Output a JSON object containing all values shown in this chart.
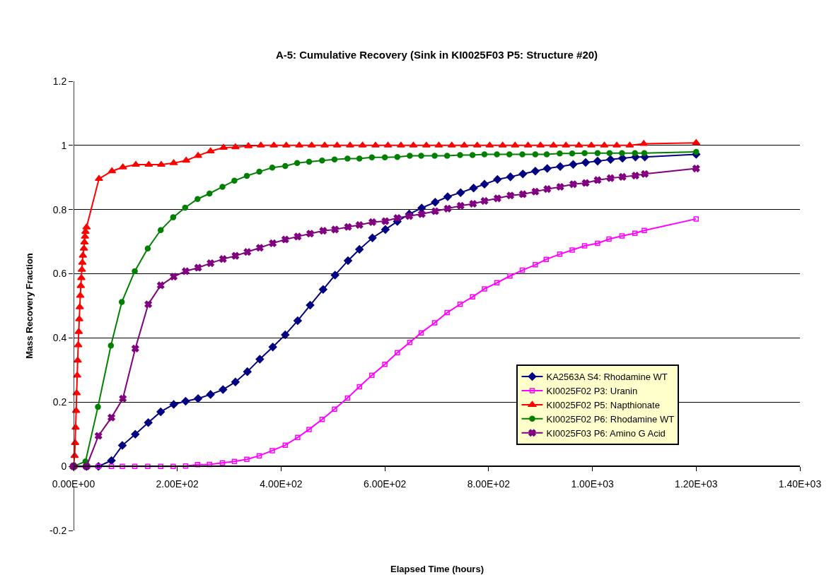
{
  "chart_data": {
    "type": "line",
    "title": "A-5: Cumulative Recovery (Sink in KI0025F03 P5: Structure #20)",
    "xlabel": "Elapsed Time (hours)",
    "ylabel": "Mass Recovery Fraction",
    "xlim": [
      0,
      1400
    ],
    "xticks": [
      {
        "value": 0,
        "label": "0.00E+00"
      },
      {
        "value": 200,
        "label": "2.00E+02"
      },
      {
        "value": 400,
        "label": "4.00E+02"
      },
      {
        "value": 600,
        "label": "6.00E+02"
      },
      {
        "value": 800,
        "label": "8.00E+02"
      },
      {
        "value": 1000,
        "label": "1.00E+03"
      },
      {
        "value": 1200,
        "label": "1.20E+03"
      },
      {
        "value": 1400,
        "label": "1.40E+03"
      }
    ],
    "ylim": [
      -0.2,
      1.2
    ],
    "yticks": [
      -0.2,
      0,
      0.2,
      0.4,
      0.6,
      0.8,
      1,
      1.2
    ],
    "grid": "y",
    "legend": "bottom right",
    "series": [
      {
        "name": "KA2563A S4: Rhodamine WT",
        "color": "#000080",
        "marker": "diamond",
        "x": [
          0,
          25,
          48,
          73,
          94,
          119,
          144,
          168,
          193,
          216,
          240,
          264,
          288,
          312,
          335,
          359,
          384,
          408,
          432,
          456,
          481,
          504,
          529,
          551,
          576,
          601,
          624,
          647,
          671,
          697,
          721,
          746,
          771,
          792,
          817,
          842,
          866,
          890,
          913,
          938,
          963,
          987,
          1010,
          1035,
          1058,
          1083,
          1101,
          1200
        ],
        "values": [
          0,
          0,
          0,
          0.018,
          0.065,
          0.1,
          0.136,
          0.17,
          0.193,
          0.203,
          0.211,
          0.224,
          0.239,
          0.263,
          0.295,
          0.334,
          0.372,
          0.41,
          0.454,
          0.502,
          0.551,
          0.596,
          0.641,
          0.676,
          0.712,
          0.738,
          0.763,
          0.786,
          0.805,
          0.823,
          0.84,
          0.853,
          0.867,
          0.879,
          0.894,
          0.902,
          0.911,
          0.92,
          0.928,
          0.934,
          0.941,
          0.947,
          0.951,
          0.956,
          0.96,
          0.964,
          0.964,
          0.972
        ]
      },
      {
        "name": "KI0025F02 P3: Uranin",
        "color": "#ff00ff",
        "marker": "square",
        "x": [
          0,
          25,
          48,
          73,
          94,
          118,
          143,
          168,
          192,
          216,
          239,
          262,
          287,
          310,
          334,
          358,
          383,
          408,
          432,
          454,
          479,
          503,
          528,
          551,
          575,
          600,
          624,
          648,
          670,
          696,
          720,
          745,
          769,
          792,
          816,
          841,
          865,
          890,
          911,
          937,
          961,
          985,
          1010,
          1032,
          1057,
          1082,
          1100,
          1200
        ],
        "values": [
          0,
          0,
          0,
          0,
          0,
          0,
          0,
          0,
          0,
          0.001,
          0.005,
          0.006,
          0.011,
          0.015,
          0.022,
          0.033,
          0.049,
          0.066,
          0.09,
          0.115,
          0.146,
          0.178,
          0.213,
          0.248,
          0.284,
          0.318,
          0.354,
          0.386,
          0.416,
          0.447,
          0.479,
          0.505,
          0.528,
          0.553,
          0.572,
          0.593,
          0.611,
          0.628,
          0.645,
          0.661,
          0.674,
          0.687,
          0.695,
          0.708,
          0.718,
          0.726,
          0.735,
          0.771
        ]
      },
      {
        "name": "KI0025F02 P5: Napthionate",
        "color": "#ff0000",
        "marker": "triangle",
        "x": [
          0,
          2,
          3,
          4,
          5,
          6,
          7,
          8,
          9,
          10,
          11,
          12,
          13,
          14,
          15,
          16,
          17,
          18,
          20,
          21,
          22,
          23,
          25,
          49,
          74,
          95,
          120,
          145,
          169,
          193,
          217,
          240,
          264,
          289,
          312,
          337,
          361,
          386,
          410,
          435,
          459,
          484,
          508,
          533,
          557,
          582,
          606,
          631,
          655,
          680,
          704,
          729,
          753,
          778,
          802,
          827,
          851,
          876,
          900,
          925,
          949,
          974,
          998,
          1023,
          1047,
          1072,
          1099,
          1200
        ],
        "values": [
          0,
          0.033,
          0.073,
          0.121,
          0.173,
          0.228,
          0.283,
          0.33,
          0.378,
          0.419,
          0.459,
          0.496,
          0.532,
          0.562,
          0.587,
          0.613,
          0.635,
          0.657,
          0.679,
          0.698,
          0.716,
          0.731,
          0.745,
          0.896,
          0.92,
          0.932,
          0.94,
          0.94,
          0.94,
          0.945,
          0.953,
          0.968,
          0.982,
          0.993,
          0.995,
          0.998,
          1,
          1,
          1,
          1,
          1,
          1,
          1,
          1,
          1,
          1,
          1,
          1,
          1,
          1,
          1,
          1,
          1,
          1,
          1,
          1,
          1,
          1,
          1,
          1,
          1,
          1,
          1,
          1,
          1,
          1,
          1.005,
          1.008
        ]
      },
      {
        "name": "KI0025F02 P6: Rhodamine WT",
        "color": "#008000",
        "marker": "circle",
        "x": [
          0,
          23,
          47,
          72,
          93,
          118,
          143,
          168,
          192,
          215,
          239,
          262,
          287,
          310,
          334,
          358,
          383,
          408,
          431,
          454,
          479,
          503,
          528,
          551,
          575,
          600,
          624,
          648,
          670,
          696,
          720,
          745,
          769,
          792,
          816,
          840,
          865,
          890,
          912,
          937,
          961,
          985,
          1010,
          1033,
          1057,
          1082,
          1100,
          1200
        ],
        "values": [
          0,
          0.015,
          0.185,
          0.376,
          0.512,
          0.608,
          0.679,
          0.736,
          0.776,
          0.806,
          0.833,
          0.85,
          0.871,
          0.89,
          0.905,
          0.918,
          0.931,
          0.936,
          0.945,
          0.949,
          0.953,
          0.956,
          0.959,
          0.959,
          0.963,
          0.963,
          0.964,
          0.968,
          0.968,
          0.968,
          0.968,
          0.97,
          0.97,
          0.972,
          0.972,
          0.972,
          0.972,
          0.972,
          0.972,
          0.975,
          0.975,
          0.976,
          0.976,
          0.976,
          0.976,
          0.976,
          0.976,
          0.98
        ]
      },
      {
        "name": "KI0025F03 P6: Amino G Acid",
        "color": "#800080",
        "marker": "cross",
        "x": [
          0,
          25,
          48,
          73,
          95,
          119,
          144,
          168,
          193,
          216,
          240,
          264,
          288,
          312,
          335,
          359,
          384,
          408,
          432,
          456,
          481,
          504,
          529,
          551,
          576,
          601,
          624,
          647,
          671,
          697,
          721,
          746,
          770,
          792,
          817,
          842,
          866,
          890,
          913,
          938,
          963,
          987,
          1010,
          1035,
          1058,
          1083,
          1101,
          1200
        ],
        "values": [
          0,
          0,
          0.095,
          0.152,
          0.211,
          0.367,
          0.505,
          0.564,
          0.591,
          0.608,
          0.619,
          0.633,
          0.646,
          0.656,
          0.668,
          0.681,
          0.695,
          0.707,
          0.716,
          0.725,
          0.734,
          0.738,
          0.746,
          0.752,
          0.761,
          0.764,
          0.774,
          0.78,
          0.786,
          0.795,
          0.803,
          0.812,
          0.818,
          0.827,
          0.835,
          0.844,
          0.848,
          0.856,
          0.864,
          0.871,
          0.879,
          0.883,
          0.892,
          0.898,
          0.902,
          0.906,
          0.911,
          0.928
        ]
      }
    ]
  }
}
